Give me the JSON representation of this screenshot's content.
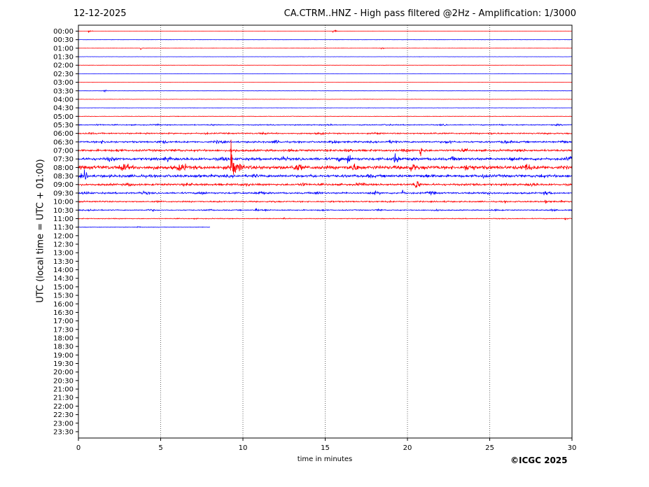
{
  "header": {
    "date": "12-12-2025",
    "title": "CA.CTRM..HNZ - High pass filtered @2Hz - Amplification: 1/3000"
  },
  "footer": {
    "copyright": "©ICGC 2025"
  },
  "colors": {
    "trace_red": "#ff0000",
    "trace_blue": "#0000ff",
    "grid": "#000000",
    "background": "#ffffff"
  },
  "chart_data": {
    "type": "line",
    "title": "CA.CTRM..HNZ - High pass filtered @2Hz - Amplification: 1/3000",
    "xlabel": "time in minutes",
    "ylabel": "UTC (local time = UTC + 01:00)",
    "xlim": [
      0,
      30
    ],
    "x_ticks": [
      0,
      5,
      10,
      15,
      20,
      25,
      30
    ],
    "grid": "vertical dotted lines at 5-minute intervals",
    "y_tick_labels": [
      "00:00",
      "00:30",
      "01:00",
      "01:30",
      "02:00",
      "02:30",
      "03:00",
      "03:30",
      "04:00",
      "04:30",
      "05:00",
      "05:30",
      "06:00",
      "06:30",
      "07:00",
      "07:30",
      "08:00",
      "08:30",
      "09:00",
      "09:30",
      "10:00",
      "10:30",
      "11:00",
      "11:30",
      "12:00",
      "12:30",
      "13:00",
      "13:30",
      "14:00",
      "14:30",
      "15:00",
      "15:30",
      "16:00",
      "16:30",
      "17:00",
      "17:30",
      "18:00",
      "18:30",
      "19:00",
      "19:30",
      "20:00",
      "20:30",
      "21:00",
      "21:30",
      "22:00",
      "22:30",
      "23:00",
      "23:30"
    ],
    "recorded_rows": 24,
    "last_row_end_minute": 8,
    "series_colors_alternate": [
      "red",
      "blue"
    ],
    "noise_level_by_row": [
      0.15,
      0.15,
      0.15,
      0.15,
      0.15,
      0.15,
      0.15,
      0.15,
      0.2,
      0.2,
      0.3,
      0.6,
      0.8,
      1.0,
      1.2,
      1.6,
      2.2,
      1.6,
      1.2,
      1.0,
      0.8,
      0.6,
      0.5,
      0.3
    ],
    "events": [
      {
        "row": 0,
        "minute": 0.65,
        "amplitude": 1.6
      },
      {
        "row": 2,
        "minute": 3.8,
        "amplitude": 2.5
      },
      {
        "row": 0,
        "minute": 15.5,
        "amplitude": 4.5
      },
      {
        "row": 2,
        "minute": 18.4,
        "amplitude": 2.0
      },
      {
        "row": 7,
        "minute": 1.6,
        "amplitude": 1.5
      },
      {
        "row": 16,
        "minute": 9.3,
        "amplitude": 40
      },
      {
        "row": 17,
        "minute": 0.4,
        "amplitude": 6
      },
      {
        "row": 18,
        "minute": 20.5,
        "amplitude": 7
      },
      {
        "row": 19,
        "minute": 19.7,
        "amplitude": 3
      },
      {
        "row": 20,
        "minute": 28.4,
        "amplitude": 3
      },
      {
        "row": 21,
        "minute": 10.8,
        "amplitude": 2.5
      },
      {
        "row": 22,
        "minute": 29.6,
        "amplitude": 1.5
      },
      {
        "row": 22,
        "minute": 12.5,
        "amplitude": 1.5
      },
      {
        "row": 15,
        "minute": 16.4,
        "amplitude": 9
      },
      {
        "row": 15,
        "minute": 19.2,
        "amplitude": 9
      },
      {
        "row": 14,
        "minute": 20.8,
        "amplitude": 7
      },
      {
        "row": 23,
        "minute": 3.6,
        "amplitude": 1.2
      }
    ]
  }
}
